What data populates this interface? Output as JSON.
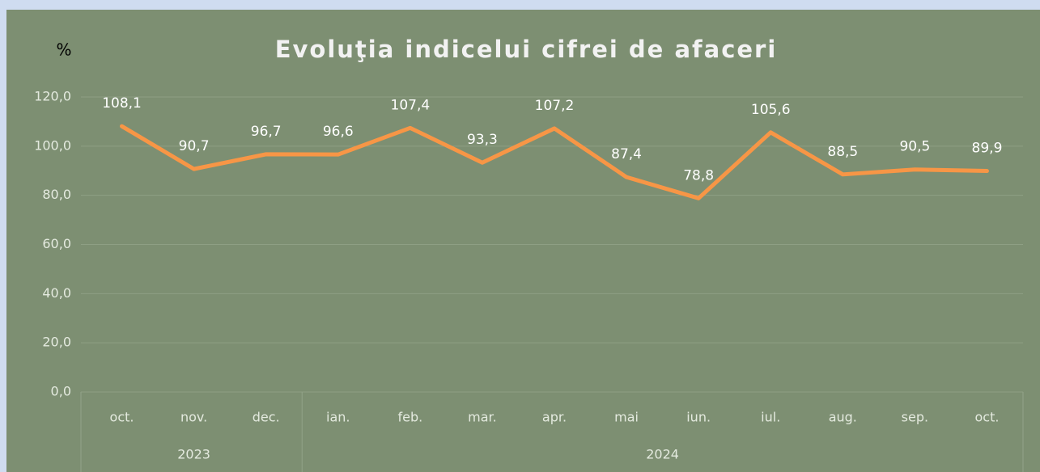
{
  "chart_data": {
    "type": "line",
    "title": "Evoluţia indicelui cifrei de afaceri",
    "y_label": "%",
    "categories": [
      "oct.",
      "nov.",
      "dec.",
      "ian.",
      "feb.",
      "mar.",
      "apr.",
      "mai",
      "iun.",
      "iul.",
      "aug.",
      "sep.",
      "oct."
    ],
    "x_groups": [
      {
        "label": "2023",
        "size": 3
      },
      {
        "label": "2024",
        "size": 10
      }
    ],
    "values": [
      108.1,
      90.7,
      96.7,
      96.6,
      107.4,
      93.3,
      107.2,
      87.4,
      78.8,
      105.6,
      88.5,
      90.5,
      89.9
    ],
    "value_labels": [
      "108,1",
      "90,7",
      "96,7",
      "96,6",
      "107,4",
      "93,3",
      "107,2",
      "87,4",
      "78,8",
      "105,6",
      "88,5",
      "90,5",
      "89,9"
    ],
    "color": "#f79646",
    "ylim": [
      0,
      120
    ],
    "yticks": [
      {
        "value": 0,
        "label": "0,0"
      },
      {
        "value": 20,
        "label": "20,0"
      },
      {
        "value": 40,
        "label": "40,0"
      },
      {
        "value": 60,
        "label": "60,0"
      },
      {
        "value": 80,
        "label": "80,0"
      },
      {
        "value": 100,
        "label": "100,0"
      },
      {
        "value": 120,
        "label": "120,0"
      }
    ],
    "grid": true
  }
}
